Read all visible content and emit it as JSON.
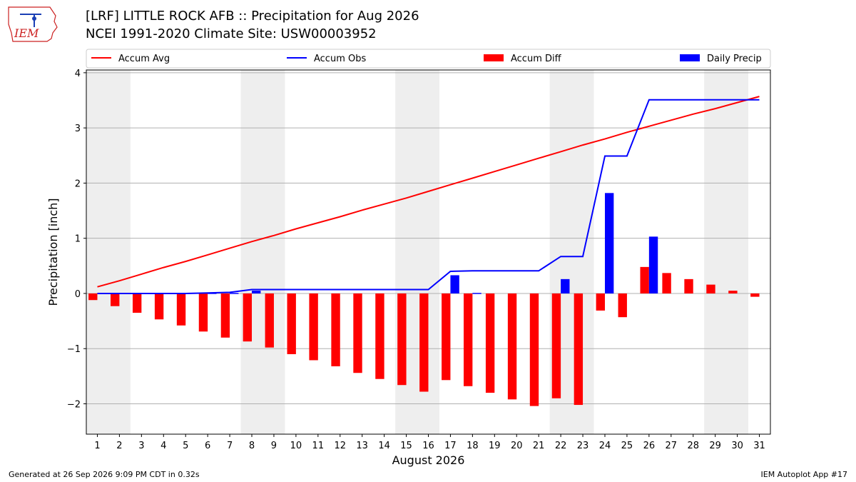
{
  "header": {
    "title_line1": "[LRF] LITTLE ROCK AFB :: Precipitation for Aug 2026",
    "title_line2": "NCEI 1991-2020 Climate Site: USW00003952"
  },
  "logo": {
    "text": "IEM"
  },
  "footer": {
    "left": "Generated at 26 Sep 2026 9:09 PM CDT in 0.32s",
    "right": "IEM Autoplot App #17"
  },
  "chart_data": {
    "type": "bar",
    "xlabel": "August 2026",
    "ylabel": "Precipitation [inch]",
    "ylim": [
      -2.55,
      4.05
    ],
    "yticks": [
      -2,
      -1,
      0,
      1,
      2,
      3,
      4
    ],
    "ytick_labels": [
      "−2",
      "−1",
      "0",
      "1",
      "2",
      "3",
      "4"
    ],
    "grid": true,
    "legend_position": "top",
    "weekend_shading_days": [
      [
        1,
        2
      ],
      [
        8,
        9
      ],
      [
        15,
        16
      ],
      [
        22,
        23
      ],
      [
        29,
        30
      ]
    ],
    "days": [
      1,
      2,
      3,
      4,
      5,
      6,
      7,
      8,
      9,
      10,
      11,
      12,
      13,
      14,
      15,
      16,
      17,
      18,
      19,
      20,
      21,
      22,
      23,
      24,
      25,
      26,
      27,
      28,
      29,
      30,
      31
    ],
    "series": [
      {
        "name": "Accum Avg",
        "kind": "line",
        "color": "#ff0000",
        "values": [
          0.12,
          0.23,
          0.35,
          0.47,
          0.58,
          0.7,
          0.82,
          0.94,
          1.05,
          1.17,
          1.28,
          1.39,
          1.51,
          1.62,
          1.73,
          1.85,
          1.97,
          2.09,
          2.21,
          2.33,
          2.45,
          2.57,
          2.69,
          2.8,
          2.92,
          3.03,
          3.14,
          3.25,
          3.35,
          3.46,
          3.57
        ]
      },
      {
        "name": "Accum Obs",
        "kind": "line",
        "color": "#0000ff",
        "values": [
          0.0,
          0.0,
          0.0,
          0.0,
          0.0,
          0.01,
          0.02,
          0.07,
          0.07,
          0.07,
          0.07,
          0.07,
          0.07,
          0.07,
          0.07,
          0.07,
          0.4,
          0.41,
          0.41,
          0.41,
          0.41,
          0.67,
          0.67,
          2.49,
          2.49,
          3.51,
          3.51,
          3.51,
          3.51,
          3.51,
          3.51
        ]
      },
      {
        "name": "Accum Diff",
        "kind": "bar",
        "color": "#ff0000",
        "values": [
          -0.12,
          -0.23,
          -0.35,
          -0.47,
          -0.58,
          -0.69,
          -0.8,
          -0.87,
          -0.98,
          -1.1,
          -1.21,
          -1.32,
          -1.44,
          -1.55,
          -1.66,
          -1.78,
          -1.57,
          -1.68,
          -1.8,
          -1.92,
          -2.04,
          -1.9,
          -2.02,
          -0.31,
          -0.43,
          0.48,
          0.37,
          0.26,
          0.16,
          0.05,
          -0.06
        ]
      },
      {
        "name": "Daily Precip",
        "kind": "bar",
        "color": "#0000ff",
        "values": [
          0,
          0,
          0,
          0,
          0,
          0.01,
          0.01,
          0.05,
          0,
          0,
          0,
          0,
          0,
          0,
          0,
          0,
          0.33,
          0.01,
          0,
          0,
          0,
          0.26,
          0,
          1.82,
          0,
          1.03,
          0,
          0,
          0,
          0,
          0
        ]
      }
    ]
  }
}
